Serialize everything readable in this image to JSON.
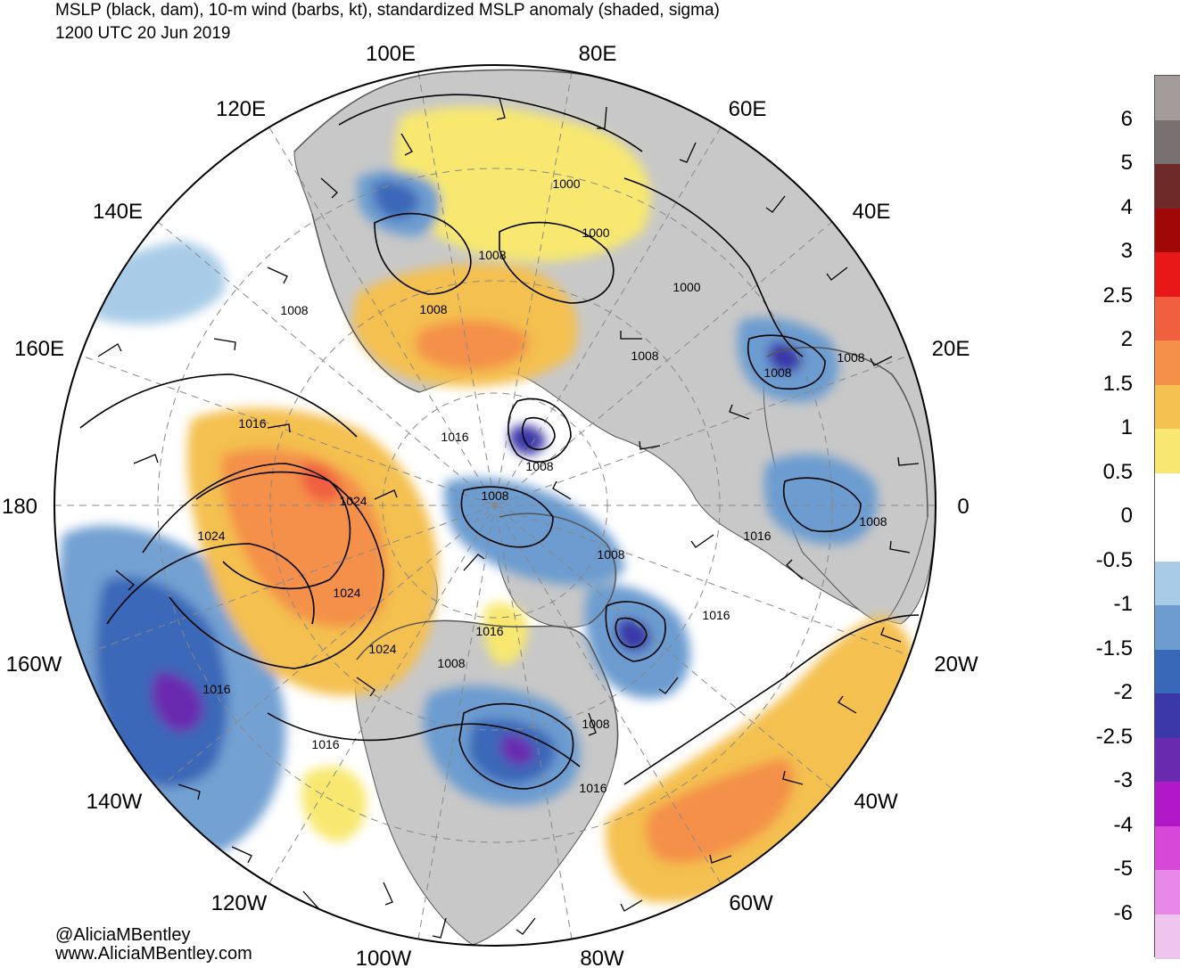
{
  "header": {
    "title": "MSLP (black, dam), 10-m wind (barbs, kt), standardized MSLP anomaly (shaded, sigma)",
    "valid_time": "1200 UTC 20 Jun 2019"
  },
  "map": {
    "projection": "north polar stereographic",
    "longitude_labels": [
      "100E",
      "80E",
      "120E",
      "60E",
      "140E",
      "40E",
      "160E",
      "20E",
      "180",
      "0",
      "160W",
      "20W",
      "140W",
      "40W",
      "120W",
      "60W",
      "100W",
      "80W"
    ],
    "isobar_labels": [
      "1000",
      "1000",
      "1000",
      "1008",
      "1008",
      "1008",
      "1008",
      "1008",
      "1008",
      "1008",
      "1008",
      "1008",
      "1008",
      "1008",
      "1016",
      "1016",
      "1016",
      "1016",
      "1016",
      "1016",
      "1016",
      "1016",
      "1024",
      "1024",
      "1024",
      "1024"
    ],
    "colors": {
      "land": "#c8c8c8",
      "coastline": "#555555",
      "isobar": "#000000",
      "graticule": "#888888"
    }
  },
  "colorbar": {
    "labels": [
      "6",
      "5",
      "4",
      "3",
      "2.5",
      "2",
      "1.5",
      "1",
      "0.5",
      "0",
      "-0.5",
      "-1",
      "-1.5",
      "-2",
      "-2.5",
      "-3",
      "-4",
      "-5",
      "-6"
    ],
    "colors": [
      "#a39c9b",
      "#787070",
      "#6e2a28",
      "#a00808",
      "#e81818",
      "#f06040",
      "#f49048",
      "#f4c050",
      "#f8e870",
      "#ffffff",
      "#ffffff",
      "#a8cce8",
      "#6c9cd0",
      "#3a68b8",
      "#3a38a8",
      "#6a2ab0",
      "#b018c8",
      "#d848d8",
      "#e888e8",
      "#ecc4ec"
    ]
  },
  "credits": {
    "handle": "@AliciaMBentley",
    "website": "www.AliciaMBentley.com"
  }
}
